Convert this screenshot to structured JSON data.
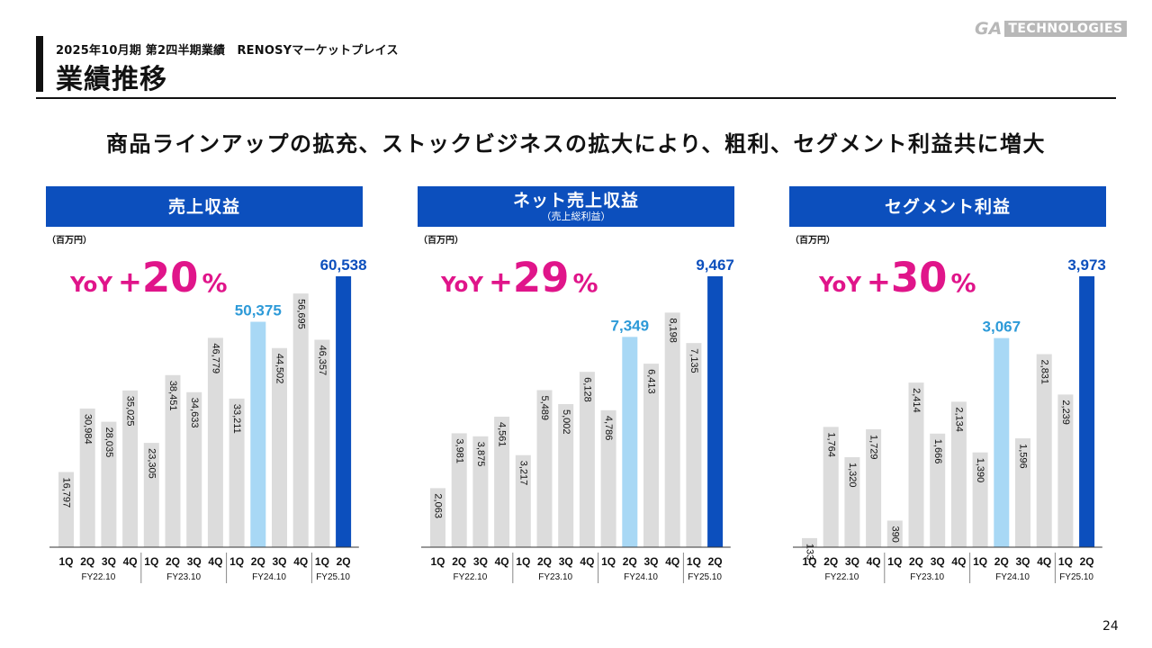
{
  "header": {
    "period": "2025年10月期 第2四半期業績　RENOSYマーケットプレイス",
    "title": "業績推移",
    "logo_ga": "GA",
    "logo_tech": "TECHNOLOGIES"
  },
  "headline": "商品ラインアップの拡充、ストックビジネスの拡大により、粗利、セグメント利益共に増大",
  "page_number": "24",
  "colors": {
    "bar_gray": "#dcdcdc",
    "bar_highlight_light": "#a8d8f5",
    "bar_highlight_dark": "#0c4fbd",
    "label_light": "#2d9ad8",
    "label_dark": "#0c4fbd",
    "yoy_pink": "#e0158a",
    "header_blue": "#0c4fbd"
  },
  "panels": [
    {
      "title": "売上収益",
      "subtitle": "",
      "unit": "（百万円）",
      "yoy_label": "YoY",
      "yoy_plus": "+",
      "yoy_value": "20",
      "yoy_pct": "%"
    },
    {
      "title": "ネット売上収益",
      "subtitle": "（売上総利益）",
      "unit": "（百万円）",
      "yoy_label": "YoY",
      "yoy_plus": "+",
      "yoy_value": "29",
      "yoy_pct": "%"
    },
    {
      "title": "セグメント利益",
      "subtitle": "",
      "unit": "（百万円）",
      "yoy_label": "YoY",
      "yoy_plus": "+",
      "yoy_value": "30",
      "yoy_pct": "%"
    }
  ],
  "chart_data": [
    {
      "type": "bar",
      "title": "売上収益",
      "quarters": [
        "1Q",
        "2Q",
        "3Q",
        "4Q",
        "1Q",
        "2Q",
        "3Q",
        "4Q",
        "1Q",
        "2Q",
        "3Q",
        "4Q",
        "1Q",
        "2Q"
      ],
      "groups": [
        {
          "label": "FY22.10",
          "count": 4
        },
        {
          "label": "FY23.10",
          "count": 4
        },
        {
          "label": "FY24.10",
          "count": 4
        },
        {
          "label": "FY25.10",
          "count": 2
        }
      ],
      "values": [
        16797,
        30984,
        28035,
        35025,
        23305,
        38451,
        34633,
        46779,
        33211,
        50375,
        44502,
        56695,
        46357,
        60538
      ],
      "labels": [
        "16,797",
        "30,984",
        "28,035",
        "35,025",
        "23,305",
        "38,451",
        "34,633",
        "46,779",
        "33,211",
        "50,375",
        "44,502",
        "56,695",
        "46,357",
        "60,538"
      ],
      "highlight": {
        "light": 9,
        "dark": 13
      },
      "ymax": 60538
    },
    {
      "type": "bar",
      "title": "ネット売上収益",
      "quarters": [
        "1Q",
        "2Q",
        "3Q",
        "4Q",
        "1Q",
        "2Q",
        "3Q",
        "4Q",
        "1Q",
        "2Q",
        "3Q",
        "4Q",
        "1Q",
        "2Q"
      ],
      "groups": [
        {
          "label": "FY22.10",
          "count": 4
        },
        {
          "label": "FY23.10",
          "count": 4
        },
        {
          "label": "FY24.10",
          "count": 4
        },
        {
          "label": "FY25.10",
          "count": 2
        }
      ],
      "values": [
        2063,
        3981,
        3875,
        4561,
        3217,
        5489,
        5002,
        6128,
        4786,
        7349,
        6413,
        8198,
        7135,
        9467
      ],
      "labels": [
        "2,063",
        "3,981",
        "3,875",
        "4,561",
        "3,217",
        "5,489",
        "5,002",
        "6,128",
        "4,786",
        "7,349",
        "6,413",
        "8,198",
        "7,135",
        "9,467"
      ],
      "highlight": {
        "light": 9,
        "dark": 13
      },
      "ymax": 9467
    },
    {
      "type": "bar",
      "title": "セグメント利益",
      "quarters": [
        "1Q",
        "2Q",
        "3Q",
        "4Q",
        "1Q",
        "2Q",
        "3Q",
        "4Q",
        "1Q",
        "2Q",
        "3Q",
        "4Q",
        "1Q",
        "2Q"
      ],
      "groups": [
        {
          "label": "FY22.10",
          "count": 4
        },
        {
          "label": "FY23.10",
          "count": 4
        },
        {
          "label": "FY24.10",
          "count": 4
        },
        {
          "label": "FY25.10",
          "count": 2
        }
      ],
      "values": [
        133,
        1764,
        1320,
        1729,
        390,
        2414,
        1666,
        2134,
        1390,
        3067,
        1596,
        2831,
        2239,
        3973
      ],
      "labels": [
        "133",
        "1,764",
        "1,320",
        "1,729",
        "390",
        "2,414",
        "1,666",
        "2,134",
        "1,390",
        "3,067",
        "1,596",
        "2,831",
        "2,239",
        "3,973"
      ],
      "highlight": {
        "light": 9,
        "dark": 13
      },
      "ymax": 3973
    }
  ]
}
